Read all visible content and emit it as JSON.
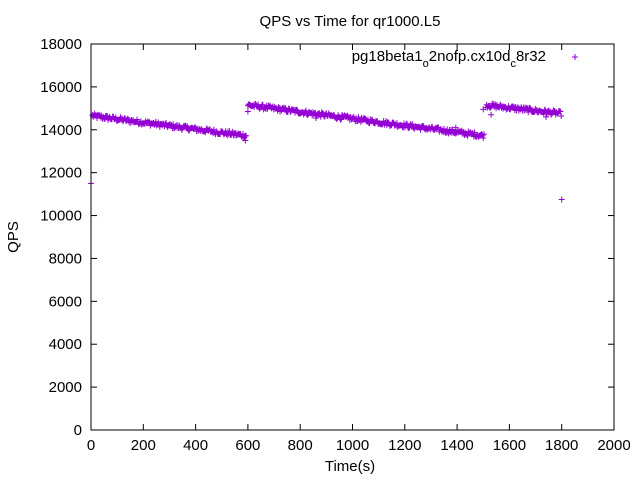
{
  "chart_data": {
    "type": "scatter",
    "title": "QPS vs Time for qr1000.L5",
    "xlabel": "Time(s)",
    "ylabel": "QPS",
    "xlim": [
      0,
      2000
    ],
    "ylim": [
      0,
      18000
    ],
    "x_ticks": [
      0,
      200,
      400,
      600,
      800,
      1000,
      1200,
      1400,
      1600,
      1800,
      2000
    ],
    "y_ticks": [
      0,
      2000,
      4000,
      6000,
      8000,
      10000,
      12000,
      14000,
      16000,
      18000
    ],
    "grid": false,
    "legend_position": "top-right",
    "series": [
      {
        "name": "pg18beta1_o2nofp.cx10d_c8r32",
        "color": "#9400d3",
        "marker": "plus",
        "segments": [
          {
            "x_start": 5,
            "x_end": 595,
            "y_start": 14650,
            "y_end": 13720,
            "step": 3,
            "noise": 110
          },
          {
            "x_start": 600,
            "x_end": 1505,
            "y_start": 15150,
            "y_end": 13720,
            "step": 3,
            "noise": 110
          },
          {
            "x_start": 1510,
            "x_end": 1800,
            "y_start": 15150,
            "y_end": 14750,
            "step": 3,
            "noise": 110
          }
        ],
        "outliers": [
          {
            "x": 0,
            "y": 11500
          },
          {
            "x": 590,
            "y": 13500
          },
          {
            "x": 600,
            "y": 14850
          },
          {
            "x": 860,
            "y": 14550
          },
          {
            "x": 1395,
            "y": 14100
          },
          {
            "x": 1500,
            "y": 14950
          },
          {
            "x": 1530,
            "y": 14700
          },
          {
            "x": 1740,
            "y": 14600
          },
          {
            "x": 1800,
            "y": 10750
          }
        ]
      }
    ]
  }
}
